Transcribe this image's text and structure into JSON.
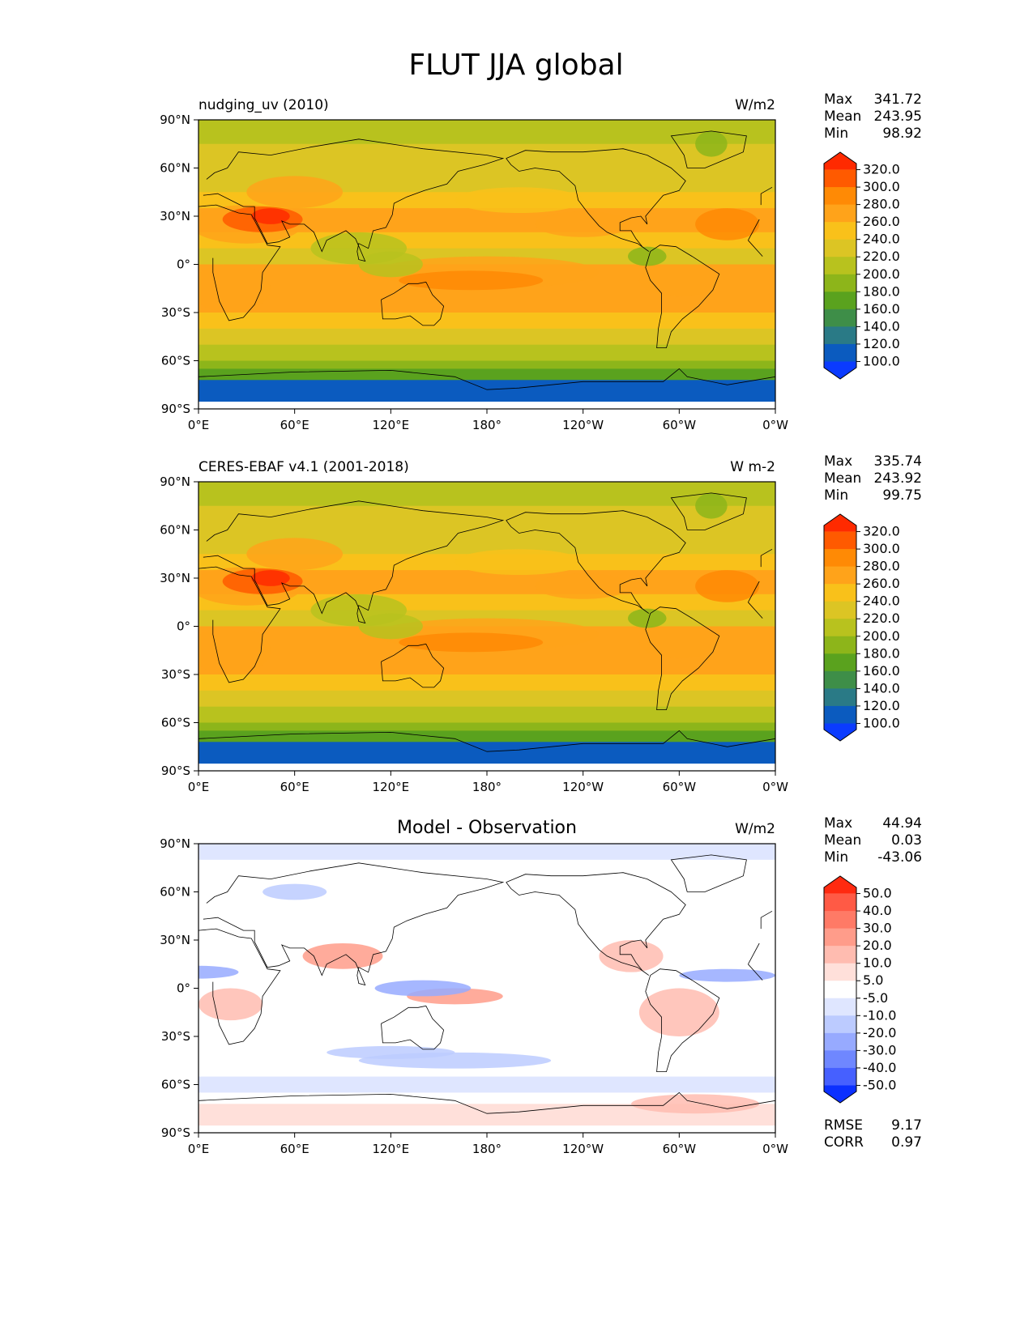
{
  "figure": {
    "title": "FLUT JJA global"
  },
  "chart_data": [
    {
      "type": "heatmap",
      "title": "nudging_uv (2010)",
      "units": "W/m2",
      "stats": {
        "max_label": "Max",
        "mean_label": "Mean",
        "min_label": "Min",
        "max": "341.72",
        "mean": "243.95",
        "min": "98.92"
      },
      "x_ticks": [
        "0°E",
        "60°E",
        "120°E",
        "180°",
        "120°W",
        "60°W",
        "0°W"
      ],
      "y_ticks": [
        "90°N",
        "60°N",
        "30°N",
        "0°",
        "30°S",
        "60°S",
        "90°S"
      ],
      "colorbar": {
        "labels": [
          "320.0",
          "300.0",
          "280.0",
          "260.0",
          "240.0",
          "220.0",
          "200.0",
          "180.0",
          "160.0",
          "140.0",
          "120.0",
          "100.0"
        ],
        "colors": [
          "#ff2a00",
          "#ff5a00",
          "#ff8a05",
          "#ffa31a",
          "#f9c11a",
          "#dcc524",
          "#b8c21e",
          "#8db51a",
          "#5aa21e",
          "#3e8e48",
          "#2a7a86",
          "#0b5bbf",
          "#0b3bff"
        ]
      }
    },
    {
      "type": "heatmap",
      "title": "CERES-EBAF v4.1 (2001-2018)",
      "units": "W m-2",
      "stats": {
        "max_label": "Max",
        "mean_label": "Mean",
        "min_label": "Min",
        "max": "335.74",
        "mean": "243.92",
        "min": "99.75"
      },
      "x_ticks": [
        "0°E",
        "60°E",
        "120°E",
        "180°",
        "120°W",
        "60°W",
        "0°W"
      ],
      "y_ticks": [
        "90°N",
        "60°N",
        "30°N",
        "0°",
        "30°S",
        "60°S",
        "90°S"
      ],
      "colorbar": {
        "labels": [
          "320.0",
          "300.0",
          "280.0",
          "260.0",
          "240.0",
          "220.0",
          "200.0",
          "180.0",
          "160.0",
          "140.0",
          "120.0",
          "100.0"
        ],
        "colors": [
          "#ff2a00",
          "#ff5a00",
          "#ff8a05",
          "#ffa31a",
          "#f9c11a",
          "#dcc524",
          "#b8c21e",
          "#8db51a",
          "#5aa21e",
          "#3e8e48",
          "#2a7a86",
          "#0b5bbf",
          "#0b3bff"
        ]
      }
    },
    {
      "type": "heatmap",
      "title": "Model - Observation",
      "units": "W/m2",
      "stats": {
        "max_label": "Max",
        "mean_label": "Mean",
        "min_label": "Min",
        "max": "44.94",
        "mean": "0.03",
        "min": "-43.06",
        "rmse_label": "RMSE",
        "rmse": "9.17",
        "corr_label": "CORR",
        "corr": "0.97"
      },
      "x_ticks": [
        "0°E",
        "60°E",
        "120°E",
        "180°",
        "120°W",
        "60°W",
        "0°W"
      ],
      "y_ticks": [
        "90°N",
        "60°N",
        "30°N",
        "0°",
        "30°S",
        "60°S",
        "90°S"
      ],
      "colorbar": {
        "labels": [
          "50.0",
          "40.0",
          "30.0",
          "20.0",
          "10.0",
          "5.0",
          "-5.0",
          "-10.0",
          "-20.0",
          "-30.0",
          "-40.0",
          "-50.0"
        ],
        "colors": [
          "#ff2a10",
          "#ff5a45",
          "#ff7a66",
          "#ff9c8a",
          "#ffbcb0",
          "#ffe0da",
          "#ffffff",
          "#dfe6ff",
          "#bccbff",
          "#97aaff",
          "#6f87ff",
          "#4660ff",
          "#0b30ff"
        ]
      }
    }
  ]
}
